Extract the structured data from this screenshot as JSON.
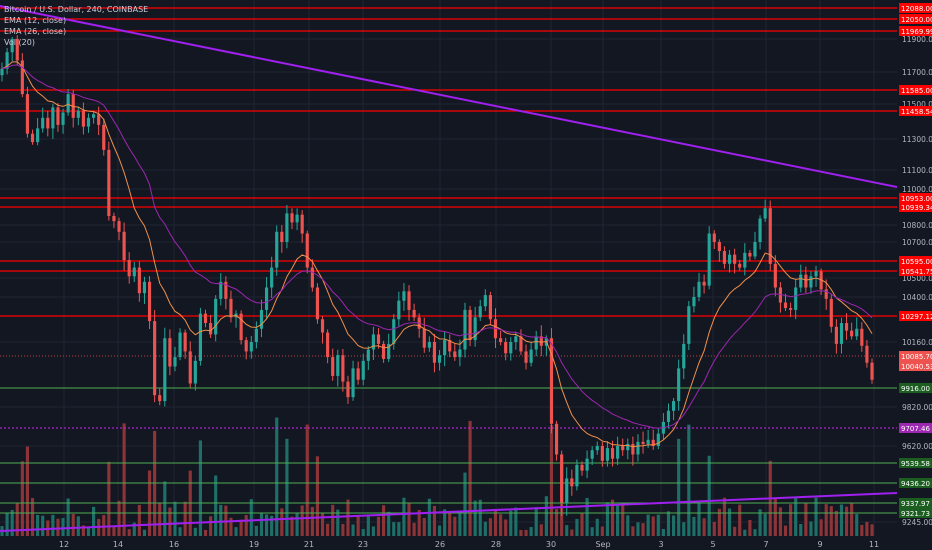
{
  "legend": {
    "title": "Bitcoin / U.S. Dollar, 240, COINBASE",
    "ema12": "EMA (12, close)",
    "ema26": "EMA (26, close)",
    "vol": "Vol (20)"
  },
  "colors": {
    "background": "#131722",
    "grid": "#1f2433",
    "up": "#26a69a",
    "down": "#ef5350",
    "vol_up": "#1e6f68",
    "vol_down": "#8c3437",
    "ema12": "#f0904a",
    "ema26": "#9c27b0",
    "trendline": "#a020f0",
    "red_level": "#ff0000",
    "green_level": "#4caf50"
  },
  "chart_data": {
    "type": "candlestick",
    "symbol": "Bitcoin / U.S. Dollar",
    "interval": "240",
    "exchange": "COINBASE",
    "y_axis_ticks": [
      11900.0,
      11700.0,
      11500.0,
      11300.0,
      11100.0,
      11000.0,
      10800.0,
      10700.0,
      10500.0,
      10400.0,
      10160.0,
      9820.0,
      9620.0,
      9245.0
    ],
    "x_axis_ticks": [
      "12",
      "14",
      "16",
      "19",
      "21",
      "23",
      "26",
      "28",
      "30",
      "Sep",
      "3",
      "5",
      "7",
      "9",
      "11"
    ],
    "red_levels": [
      12088.0,
      12050.0,
      11969.99,
      11585.0,
      11458.54,
      10953.0,
      10939.34,
      10595.0,
      10541.75,
      10297.12
    ],
    "green_levels": [
      9916.0,
      9539.58,
      9436.2,
      9337.97,
      9321.73
    ],
    "purple_level": 9707.46,
    "current_price_labels": [
      10085.7,
      10040.53
    ],
    "closes": [
      11720,
      11820,
      11900,
      11770,
      11560,
      11330,
      11280,
      11360,
      11420,
      11360,
      11480,
      11380,
      11450,
      11560,
      11420,
      11460,
      11370,
      11420,
      11440,
      11380,
      11230,
      10870,
      10830,
      10760,
      10600,
      10510,
      10560,
      10420,
      10480,
      10270,
      9880,
      9850,
      10180,
      10030,
      10080,
      10210,
      10110,
      9940,
      10060,
      10310,
      10260,
      10200,
      10390,
      10480,
      10390,
      10290,
      10310,
      10170,
      10110,
      10160,
      10230,
      10330,
      10450,
      10560,
      10760,
      10700,
      10890,
      10820,
      10880,
      10750,
      10560,
      10450,
      10280,
      10210,
      10080,
      9980,
      10090,
      9950,
      9870,
      10020,
      9960,
      10060,
      10120,
      10200,
      10150,
      10070,
      10150,
      10280,
      10380,
      10430,
      10330,
      10290,
      10230,
      10130,
      10160,
      10050,
      10090,
      10170,
      10110,
      10080,
      10120,
      10330,
      10170,
      10290,
      10350,
      10410,
      10280,
      10180,
      10160,
      10100,
      10160,
      10190,
      10110,
      10050,
      10120,
      10190,
      10140,
      10180,
      9730,
      9580,
      9340,
      9460,
      9420,
      9530,
      9500,
      9560,
      9600,
      9620,
      9550,
      9610,
      9560,
      9620,
      9600,
      9630,
      9580,
      9640,
      9630,
      9650,
      9620,
      9680,
      9740,
      9800,
      9850,
      10020,
      10150,
      10350,
      10400,
      10480,
      10460,
      10750,
      10700,
      10650,
      10580,
      10630,
      10580,
      10560,
      10640,
      10620,
      10700,
      10850,
      10930,
      10580,
      10450,
      10370,
      10340,
      10330,
      10450,
      10520,
      10450,
      10510,
      10540,
      10440,
      10390,
      10240,
      10150,
      10260,
      10220,
      10190,
      10230,
      10140,
      10050,
      9960
    ]
  }
}
